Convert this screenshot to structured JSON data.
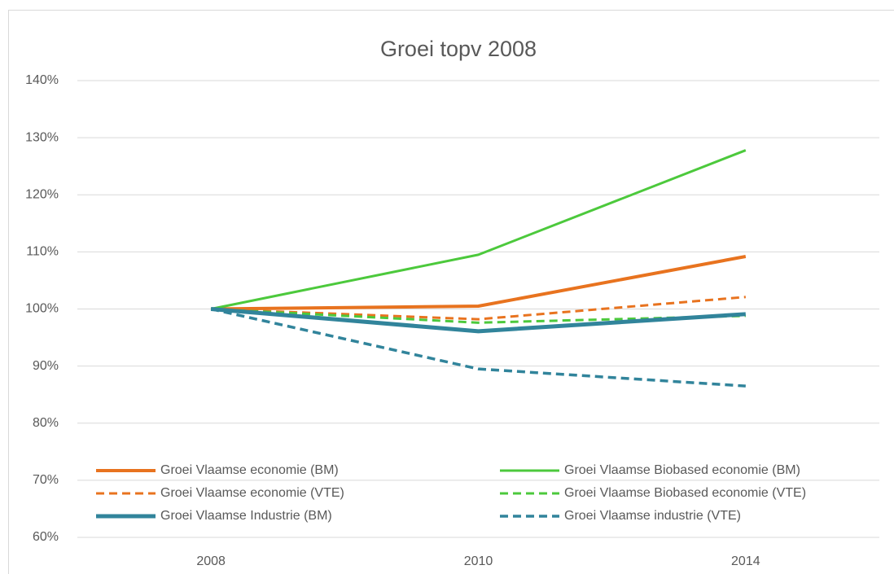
{
  "chart_data": {
    "type": "line",
    "title": "Groei topv 2008",
    "categories": [
      "2008",
      "2010",
      "2014"
    ],
    "series": [
      {
        "name": "Groei  Vlaamse economie (BM)",
        "color": "#e8731f",
        "width": 4,
        "dashed": false,
        "values": [
          100,
          100.5,
          109.2
        ]
      },
      {
        "name": "Groei Vlaamse Biobased economie (BM)",
        "color": "#4cc93c",
        "width": 3,
        "dashed": false,
        "values": [
          100,
          109.5,
          127.8
        ]
      },
      {
        "name": "Groei  Vlaamse economie (VTE)",
        "color": "#e8731f",
        "width": 3,
        "dashed": true,
        "values": [
          100,
          98.2,
          102.1
        ]
      },
      {
        "name": "Groei Vlaamse Biobased economie (VTE)",
        "color": "#4cc93c",
        "width": 3,
        "dashed": true,
        "values": [
          100,
          97.6,
          98.8
        ]
      },
      {
        "name": "Groei Vlaamse Industrie (BM)",
        "color": "#31849b",
        "width": 5,
        "dashed": false,
        "values": [
          100,
          96.1,
          99.1
        ]
      },
      {
        "name": "Groei  Vlaamse industrie (VTE)",
        "color": "#31849b",
        "width": 3.5,
        "dashed": true,
        "values": [
          100,
          89.5,
          86.5
        ]
      }
    ],
    "ylim": [
      60,
      140
    ],
    "yticks": [
      {
        "value": 60,
        "label": "60%"
      },
      {
        "value": 70,
        "label": "70%"
      },
      {
        "value": 80,
        "label": "80%"
      },
      {
        "value": 90,
        "label": "90%"
      },
      {
        "value": 100,
        "label": "100%"
      },
      {
        "value": 110,
        "label": "110%"
      },
      {
        "value": 120,
        "label": "120%"
      },
      {
        "value": 130,
        "label": "130%"
      },
      {
        "value": 140,
        "label": "140%"
      }
    ],
    "grid": true,
    "legend": "bottom"
  }
}
